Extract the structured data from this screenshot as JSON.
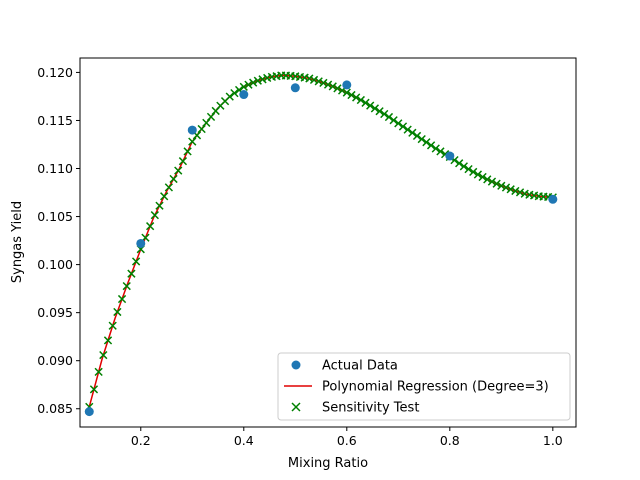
{
  "chart_data": {
    "type": "scatter",
    "title": "",
    "xlabel": "Mixing Ratio",
    "ylabel": "Syngas Yield",
    "xlim": [
      0.082,
      1.045
    ],
    "ylim": [
      0.0831,
      0.1215
    ],
    "xticks": [
      0.2,
      0.4,
      0.6,
      0.8,
      1.0
    ],
    "xtick_labels": [
      "0.2",
      "0.4",
      "0.6",
      "0.8",
      "1.0"
    ],
    "yticks": [
      0.085,
      0.09,
      0.095,
      0.1,
      0.105,
      0.11,
      0.115,
      0.12
    ],
    "ytick_labels": [
      "0.085",
      "0.090",
      "0.095",
      "0.100",
      "0.105",
      "0.110",
      "0.115",
      "0.120"
    ],
    "grid": false,
    "legend_position": "lower-right",
    "series": [
      {
        "name": "Actual Data",
        "kind": "scatter",
        "marker": "circle",
        "color": "#1f77b4",
        "x": [
          0.1,
          0.2,
          0.3,
          0.4,
          0.5,
          0.6,
          0.8,
          1.0
        ],
        "y": [
          0.0847,
          0.1022,
          0.114,
          0.1177,
          0.1184,
          0.1187,
          0.1113,
          0.1068
        ]
      },
      {
        "name": "Polynomial Regression (Degree=3)",
        "kind": "line",
        "color": "#e00000",
        "x": [
          0.1,
          0.125,
          0.15,
          0.175,
          0.2,
          0.225,
          0.25,
          0.275,
          0.3,
          0.325,
          0.35,
          0.375,
          0.4,
          0.425,
          0.45,
          0.475,
          0.5,
          0.525,
          0.55,
          0.575,
          0.6,
          0.625,
          0.65,
          0.675,
          0.7,
          0.725,
          0.75,
          0.775,
          0.8,
          0.825,
          0.85,
          0.875,
          0.9,
          0.925,
          0.95,
          0.975,
          1.0
        ],
        "y": [
          0.0852,
          0.0902,
          0.0944,
          0.0981,
          0.1016,
          0.1049,
          0.1076,
          0.11,
          0.1128,
          0.1146,
          0.1163,
          0.1176,
          0.1185,
          0.1191,
          0.1195,
          0.1197,
          0.1196,
          0.1194,
          0.119,
          0.1185,
          0.1179,
          0.1172,
          0.1164,
          0.1156,
          0.1147,
          0.1138,
          0.1129,
          0.112,
          0.1112,
          0.1103,
          0.1095,
          0.1088,
          0.1082,
          0.1077,
          0.1073,
          0.1071,
          0.107
        ]
      },
      {
        "name": "Sensitivity Test",
        "kind": "scatter",
        "marker": "x",
        "color": "#008000",
        "x_start": 0.1,
        "x_end": 1.0,
        "points": 100
      }
    ]
  }
}
